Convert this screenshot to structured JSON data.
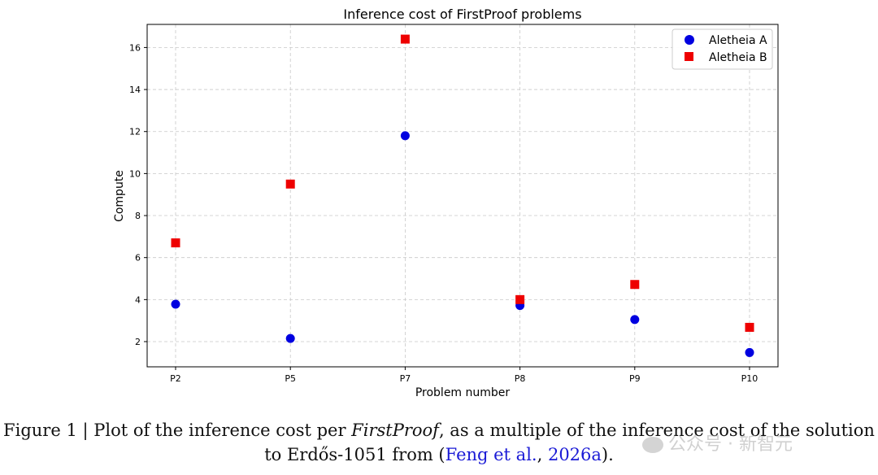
{
  "chart_data": {
    "type": "scatter",
    "title": "Inference cost of FirstProof problems",
    "xlabel": "Problem number",
    "ylabel": "Compute",
    "categories": [
      "P2",
      "P5",
      "P7",
      "P8",
      "P9",
      "P10"
    ],
    "yticks": [
      2,
      4,
      6,
      8,
      10,
      12,
      14,
      16
    ],
    "ylim": [
      0.8,
      17.1
    ],
    "grid": true,
    "legend_position": "top-right",
    "series": [
      {
        "name": "Aletheia A",
        "marker": "circle",
        "color": "#0000e0",
        "values": [
          3.78,
          2.15,
          11.8,
          3.72,
          3.05,
          1.48
        ]
      },
      {
        "name": "Aletheia B",
        "marker": "square",
        "color": "#ee0000",
        "values": [
          6.7,
          9.5,
          16.4,
          4.0,
          4.72,
          2.68
        ]
      }
    ]
  },
  "caption": {
    "line1_prefix": "Figure 1 | Plot of the inference cost per ",
    "line1_italic": "FirstProof",
    "line1_suffix": ", as a multiple of the inference cost of the solution",
    "line2_prefix": "to Erdős-1051 from (",
    "line2_link1": "Feng et al.",
    "line2_sep": ", ",
    "line2_link2": "2026a",
    "line2_suffix": ")."
  },
  "watermark": {
    "text": "公众号 · 新智元"
  }
}
